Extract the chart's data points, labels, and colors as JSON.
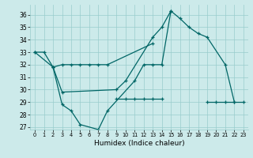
{
  "xlabel": "Humidex (Indice chaleur)",
  "bg_color": "#cceaea",
  "grid_color": "#99cccc",
  "line_color": "#006666",
  "xlim": [
    -0.5,
    23.5
  ],
  "ylim": [
    26.8,
    36.8
  ],
  "yticks": [
    27,
    28,
    29,
    30,
    31,
    32,
    33,
    34,
    35,
    36
  ],
  "xticks": [
    0,
    1,
    2,
    3,
    4,
    5,
    6,
    7,
    8,
    9,
    10,
    11,
    12,
    13,
    14,
    15,
    16,
    17,
    18,
    19,
    20,
    21,
    22,
    23
  ],
  "series": [
    {
      "x": [
        0,
        1,
        2,
        3,
        9,
        10,
        13,
        14,
        15,
        16,
        17,
        18,
        19,
        21,
        22
      ],
      "y": [
        33.0,
        33.0,
        31.8,
        29.8,
        30.0,
        30.7,
        34.2,
        35.0,
        36.3,
        35.7,
        35.0,
        34.5,
        34.2,
        32.0,
        29.0
      ]
    },
    {
      "x": [
        0,
        2,
        3,
        4,
        5,
        7,
        8,
        11,
        12,
        13,
        14,
        15
      ],
      "y": [
        33.0,
        31.8,
        28.8,
        28.3,
        27.2,
        26.8,
        28.3,
        30.7,
        32.0,
        32.0,
        32.0,
        36.3
      ]
    },
    {
      "x": [
        9,
        10,
        11,
        12,
        13,
        14
      ],
      "y": [
        29.3,
        29.3,
        29.3,
        29.3,
        29.3,
        29.3
      ]
    },
    {
      "x": [
        19,
        20,
        21,
        22,
        23
      ],
      "y": [
        29.0,
        29.0,
        29.0,
        29.0,
        29.0
      ]
    },
    {
      "x": [
        2,
        3,
        4,
        5,
        6,
        7,
        8,
        13
      ],
      "y": [
        31.8,
        32.0,
        32.0,
        32.0,
        32.0,
        32.0,
        32.0,
        33.7
      ]
    }
  ]
}
